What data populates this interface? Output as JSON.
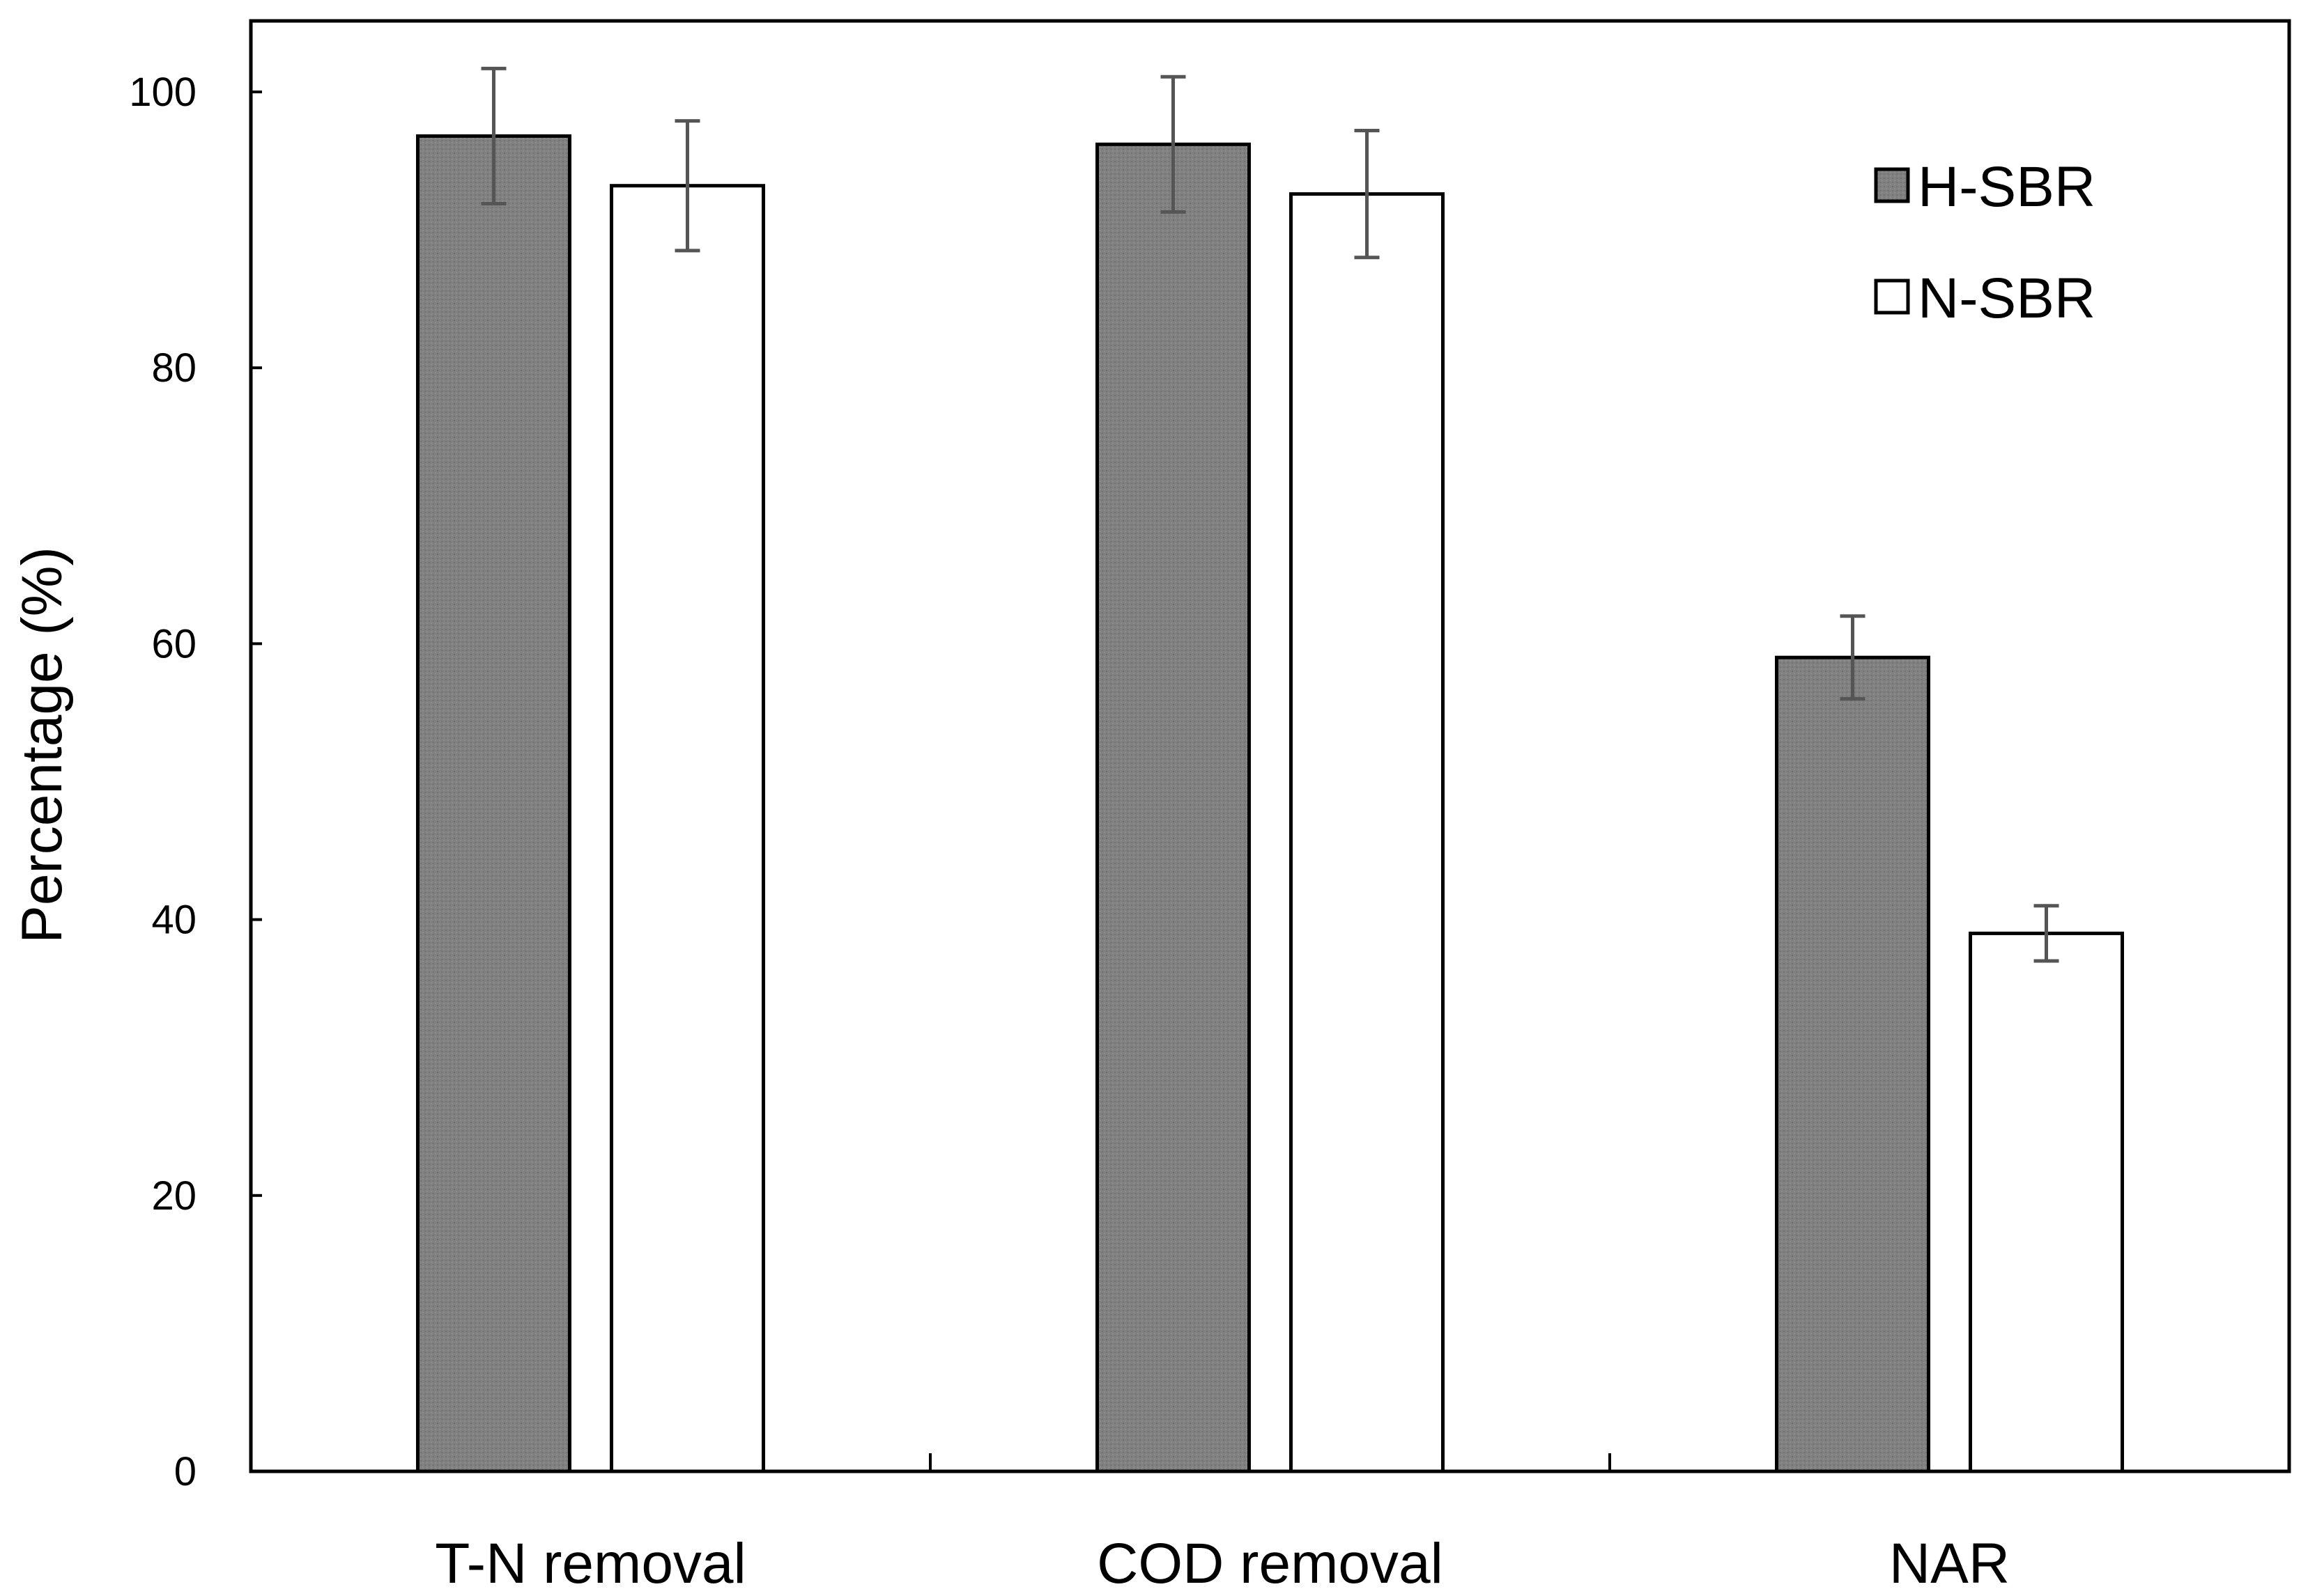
{
  "chart_data": {
    "type": "bar",
    "title": "",
    "xlabel": "",
    "ylabel": "Percentage (%)",
    "ylim": [
      0,
      100
    ],
    "yticks": [
      0,
      20,
      40,
      60,
      80,
      100
    ],
    "ytick_labels": [
      "0",
      "20",
      "40",
      "60",
      "80",
      "100"
    ],
    "categories": [
      "T-N removal",
      "COD removal",
      "NAR"
    ],
    "series": [
      {
        "name": "H-SBR",
        "color": "#808080",
        "values": [
          96.8,
          96.2,
          59.0
        ],
        "errors": [
          4.9,
          4.9,
          3.0
        ]
      },
      {
        "name": "N-SBR",
        "color": "#ffffff",
        "values": [
          93.2,
          92.6,
          39.0
        ],
        "errors": [
          4.7,
          4.6,
          2.0
        ]
      }
    ],
    "legend": {
      "position": "top-right"
    },
    "grid": false,
    "axis_color": "#000000",
    "error_bar_color": "#555555"
  }
}
